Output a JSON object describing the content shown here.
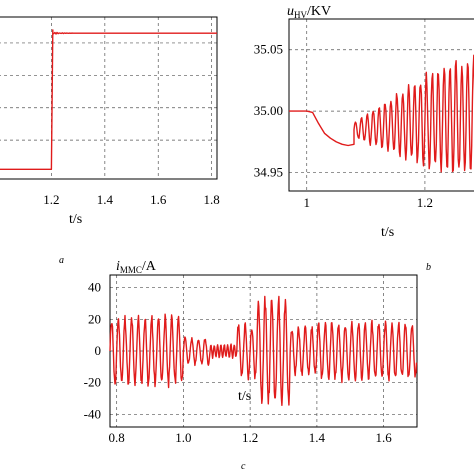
{
  "chart_data": [
    {
      "id": "a",
      "type": "line",
      "panel_label": "a",
      "xlabel": "t/s",
      "x_ticks": [
        "1.2",
        "1.4",
        "1.6",
        "1.8"
      ],
      "x_tick_values": [
        1.2,
        1.4,
        1.6,
        1.8
      ],
      "xlim": [
        1.0,
        1.82
      ],
      "ylim": [
        0,
        1
      ],
      "grid": true,
      "series": [
        {
          "color": "#e01b1b",
          "x": [
            1.0,
            1.19,
            1.2,
            1.205,
            1.215,
            1.25,
            1.82
          ],
          "y": [
            0.06,
            0.06,
            0.06,
            0.92,
            0.9,
            0.9,
            0.9
          ]
        }
      ]
    },
    {
      "id": "b",
      "type": "line",
      "panel_label": "b",
      "ylabel_main": "u",
      "ylabel_sub": "HV",
      "ylabel_unit": "/KV",
      "xlabel": "t/s",
      "x_ticks": [
        "1",
        "1.2"
      ],
      "x_tick_values": [
        1.0,
        1.2
      ],
      "y_ticks": [
        "34.95",
        "35.00",
        "35.05"
      ],
      "y_tick_values": [
        34.95,
        35.0,
        35.05
      ],
      "xlim": [
        0.97,
        1.3
      ],
      "ylim": [
        34.935,
        35.075
      ],
      "grid": true,
      "series": [
        {
          "color": "#e01b1b",
          "x": [
            0.97,
            1.0,
            1.01,
            1.02,
            1.03,
            1.04,
            1.05,
            1.06,
            1.07,
            1.08
          ],
          "y": [
            35.0,
            35.0,
            34.999,
            34.99,
            34.982,
            34.978,
            34.975,
            34.973,
            34.972,
            34.973
          ]
        }
      ],
      "oscillation": {
        "t_start": 1.08,
        "t_end": 1.3,
        "mean": 34.985,
        "amplitude_start": 0.006,
        "amplitude_end": 0.045,
        "frequency_hz": 100
      }
    },
    {
      "id": "c",
      "type": "line",
      "panel_label": "c",
      "ylabel_main": "i",
      "ylabel_sub": "MMC",
      "ylabel_unit": "/A",
      "xlabel": "t/s",
      "x_ticks": [
        "0.8",
        "1.0",
        "1.2",
        "1.4",
        "1.6"
      ],
      "x_tick_values": [
        0.8,
        1.0,
        1.2,
        1.4,
        1.6
      ],
      "y_ticks": [
        "40",
        "20",
        "0",
        "-20",
        "-40"
      ],
      "y_tick_values": [
        40,
        20,
        0,
        -20,
        -40
      ],
      "xlim": [
        0.78,
        1.7
      ],
      "ylim": [
        -48,
        48
      ],
      "grid": true,
      "oscillation_segments": [
        {
          "t_start": 0.78,
          "t_end": 1.0,
          "amplitude": 20,
          "frequency_hz": 50
        },
        {
          "t_start": 1.0,
          "t_end": 1.08,
          "amplitude": 8,
          "frequency_hz": 50
        },
        {
          "t_start": 1.08,
          "t_end": 1.16,
          "amplitude": 4,
          "frequency_hz": 100
        },
        {
          "t_start": 1.16,
          "t_end": 1.22,
          "amplitude": 16,
          "frequency_hz": 50
        },
        {
          "t_start": 1.22,
          "t_end": 1.32,
          "amplitude": 32,
          "frequency_hz": 50
        },
        {
          "t_start": 1.32,
          "t_end": 1.4,
          "amplitude": 14,
          "frequency_hz": 50
        },
        {
          "t_start": 1.4,
          "t_end": 1.7,
          "amplitude": 17,
          "frequency_hz": 50
        }
      ]
    }
  ]
}
